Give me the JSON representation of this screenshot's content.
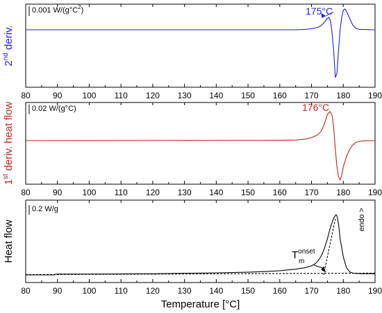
{
  "chart_data": [
    {
      "type": "line",
      "panel": "top",
      "ylabel": "2nd deriv.",
      "ylabel_parts": {
        "base": "2",
        "sup": "nd",
        "rest": " deriv."
      },
      "scale_bar": {
        "text": "0.001 W/(g°C",
        "sup": "2",
        "tail": ")"
      },
      "annotation": {
        "text": "175°C",
        "x": 175
      },
      "color": "#1f1fd6",
      "xlim": [
        80,
        190
      ],
      "xticks": [
        80,
        90,
        100,
        110,
        120,
        130,
        140,
        150,
        160,
        170,
        180,
        190
      ],
      "series": [
        {
          "x": [
            80,
            165,
            168,
            170,
            171,
            172,
            173,
            174,
            175,
            175.5,
            176,
            176.5,
            177,
            177.5,
            178,
            178.5,
            179,
            179.5,
            180,
            180.5,
            181,
            182,
            183,
            184,
            185,
            190
          ],
          "y": [
            0,
            0,
            0.02,
            0.05,
            0.08,
            0.12,
            0.2,
            0.35,
            0.55,
            0.6,
            0.4,
            -0.2,
            -1.1,
            -2.3,
            -2.1,
            -1.0,
            0,
            0.6,
            0.95,
            1.0,
            0.9,
            0.55,
            0.22,
            0.07,
            0.02,
            0
          ]
        }
      ]
    },
    {
      "type": "line",
      "panel": "middle",
      "ylabel": "1st deriv. heat flow",
      "ylabel_parts": {
        "base": "1",
        "sup": "st",
        "rest": " deriv. heat flow"
      },
      "scale_bar": {
        "text": "0.02 W/(g°C)",
        "sup": "",
        "tail": ""
      },
      "annotation": {
        "text": "176°C",
        "x": 176
      },
      "color": "#b22a1c",
      "xlim": [
        80,
        190
      ],
      "xticks": [
        80,
        90,
        100,
        110,
        120,
        130,
        140,
        150,
        160,
        170,
        180,
        190
      ],
      "series": [
        {
          "x": [
            80,
            160,
            165,
            168,
            170,
            172,
            173,
            174,
            175,
            175.8,
            176.5,
            177,
            177.5,
            178,
            178.5,
            179,
            179.5,
            180,
            181,
            182,
            183,
            184,
            186,
            190
          ],
          "y": [
            0,
            0.01,
            0.02,
            0.05,
            0.1,
            0.2,
            0.32,
            0.55,
            0.9,
            1.0,
            0.85,
            0.4,
            -0.3,
            -0.9,
            -1.25,
            -1.35,
            -1.2,
            -0.9,
            -0.55,
            -0.3,
            -0.15,
            -0.06,
            -0.01,
            0
          ]
        }
      ]
    },
    {
      "type": "line",
      "panel": "bottom",
      "ylabel": "Heat flow",
      "scale_bar": {
        "text": "0.2 W/g",
        "sup": "",
        "tail": ""
      },
      "side_label": "endo >",
      "annotation": {
        "text": "T",
        "sub": "m",
        "sup": "onset",
        "x": 174.5
      },
      "color": "#000000",
      "xlabel": "Temperature [°C]",
      "xlim": [
        80,
        190
      ],
      "xticks": [
        80,
        90,
        100,
        110,
        120,
        130,
        140,
        150,
        160,
        170,
        180,
        190
      ],
      "series": [
        {
          "x": [
            80,
            89,
            89.5,
            100,
            110,
            120,
            130,
            140,
            150,
            155,
            160,
            165,
            168,
            170,
            171,
            172,
            173,
            174,
            175,
            176,
            177,
            177.7,
            178,
            178.5,
            179,
            180,
            181,
            182,
            183,
            184,
            186,
            190
          ],
          "y": [
            0,
            0,
            0.014,
            0.014,
            0.016,
            0.02,
            0.026,
            0.034,
            0.045,
            0.055,
            0.07,
            0.095,
            0.12,
            0.15,
            0.18,
            0.23,
            0.31,
            0.43,
            0.6,
            0.8,
            0.95,
            1.0,
            0.98,
            0.85,
            0.6,
            0.3,
            0.12,
            0.05,
            0.03,
            0.025,
            0.02,
            0.02
          ]
        },
        {
          "style": "dashed",
          "x": [
            80,
            190
          ],
          "y": [
            0.005,
            0.03
          ]
        },
        {
          "style": "dashed",
          "x": [
            173.8,
            177.5
          ],
          "y": [
            0.0,
            0.93
          ]
        }
      ]
    }
  ]
}
